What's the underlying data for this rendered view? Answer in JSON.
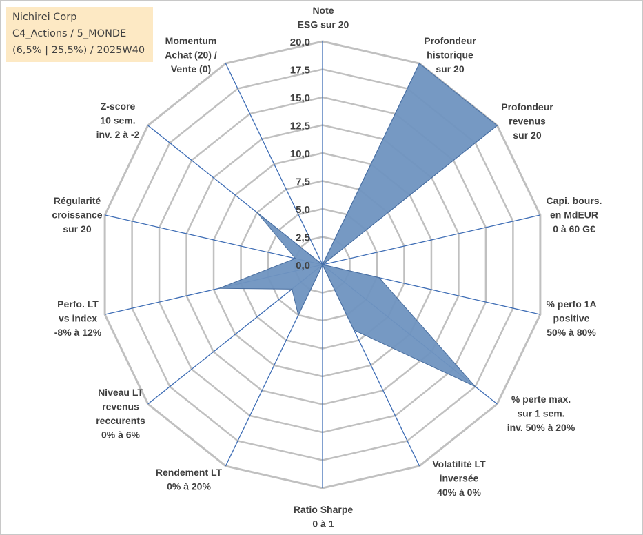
{
  "info_box": {
    "line1": "Nichirei Corp",
    "line2": "C4_Actions / 5_MONDE",
    "line3": "(6,5% | 25,5%) / 2025W40"
  },
  "chart_data": {
    "type": "radar",
    "rmax": 20,
    "rmin": 0,
    "tick_step": 2.5,
    "tick_labels": [
      "0,0",
      "2,5",
      "5,0",
      "7,5",
      "10,0",
      "12,5",
      "15,0",
      "17,5",
      "20,0"
    ],
    "grid": true,
    "colors": {
      "fill": "#6f93c0",
      "stroke": "#4a6fa0",
      "spoke": "#3e6db5",
      "grid": "#c0c0c0"
    },
    "axes": [
      {
        "label_lines": [
          "Note",
          "ESG sur 20"
        ],
        "value": 0
      },
      {
        "label_lines": [
          "Profondeur",
          "historique",
          "sur 20"
        ],
        "value": 20
      },
      {
        "label_lines": [
          "Profondeur",
          "revenus",
          "sur 20"
        ],
        "value": 20
      },
      {
        "label_lines": [
          "Capi. bours.",
          "en MdEUR",
          "0 à 60 G€"
        ],
        "value": 0
      },
      {
        "label_lines": [
          "% perfo 1A",
          "positive",
          "50% à 80%"
        ],
        "value": 5.2
      },
      {
        "label_lines": [
          "% perte max.",
          "sur 1 sem.",
          "inv. 50% à 20%"
        ],
        "value": 17.5
      },
      {
        "label_lines": [
          "Volatilité LT",
          "inversée",
          "40% à 0%"
        ],
        "value": 6.5
      },
      {
        "label_lines": [
          "Ratio Sharpe",
          "0 à 1"
        ],
        "value": 0
      },
      {
        "label_lines": [
          "Rendement LT",
          "0% à 20%"
        ],
        "value": 5
      },
      {
        "label_lines": [
          "Niveau LT",
          "revenus",
          "reccurents",
          "0% à 6%"
        ],
        "value": 3.5
      },
      {
        "label_lines": [
          "Perfo. LT",
          "vs index",
          "-8% à 12%"
        ],
        "value": 9.5
      },
      {
        "label_lines": [
          "Régularité",
          "croissance",
          "sur 20"
        ],
        "value": 2.5
      },
      {
        "label_lines": [
          "Z-score",
          "10 sem.",
          "inv. 2 à -2"
        ],
        "value": 7.5
      },
      {
        "label_lines": [
          "Momentum",
          "Achat (20) /",
          "Vente (0)"
        ],
        "value": 0
      }
    ]
  }
}
